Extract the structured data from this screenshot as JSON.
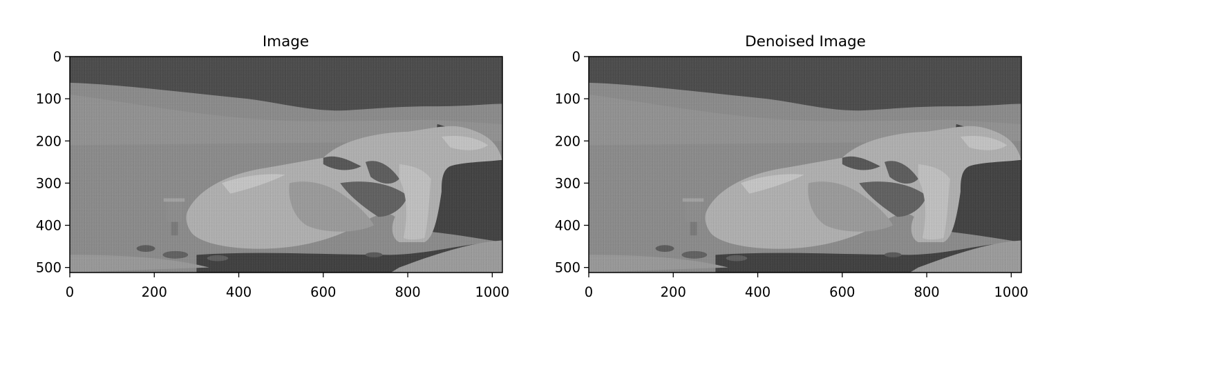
{
  "figure": {
    "panels": [
      {
        "title": "Image"
      },
      {
        "title": "Denoised Image"
      }
    ]
  },
  "chart_data": [
    {
      "type": "heatmap",
      "title": "Image",
      "xlabel": "",
      "ylabel": "",
      "xlim": [
        0,
        1024
      ],
      "ylim": [
        512,
        0
      ],
      "x_ticks": [
        0,
        200,
        400,
        600,
        800,
        1000
      ],
      "y_ticks": [
        0,
        100,
        200,
        300,
        400,
        500
      ],
      "colormap": "gray",
      "grid": false
    },
    {
      "type": "heatmap",
      "title": "Denoised Image",
      "xlabel": "",
      "ylabel": "",
      "xlim": [
        0,
        1024
      ],
      "ylim": [
        512,
        0
      ],
      "x_ticks": [
        0,
        200,
        400,
        600,
        800,
        1000
      ],
      "y_ticks": [
        0,
        100,
        200,
        300,
        400,
        500
      ],
      "colormap": "gray",
      "grid": false
    }
  ]
}
